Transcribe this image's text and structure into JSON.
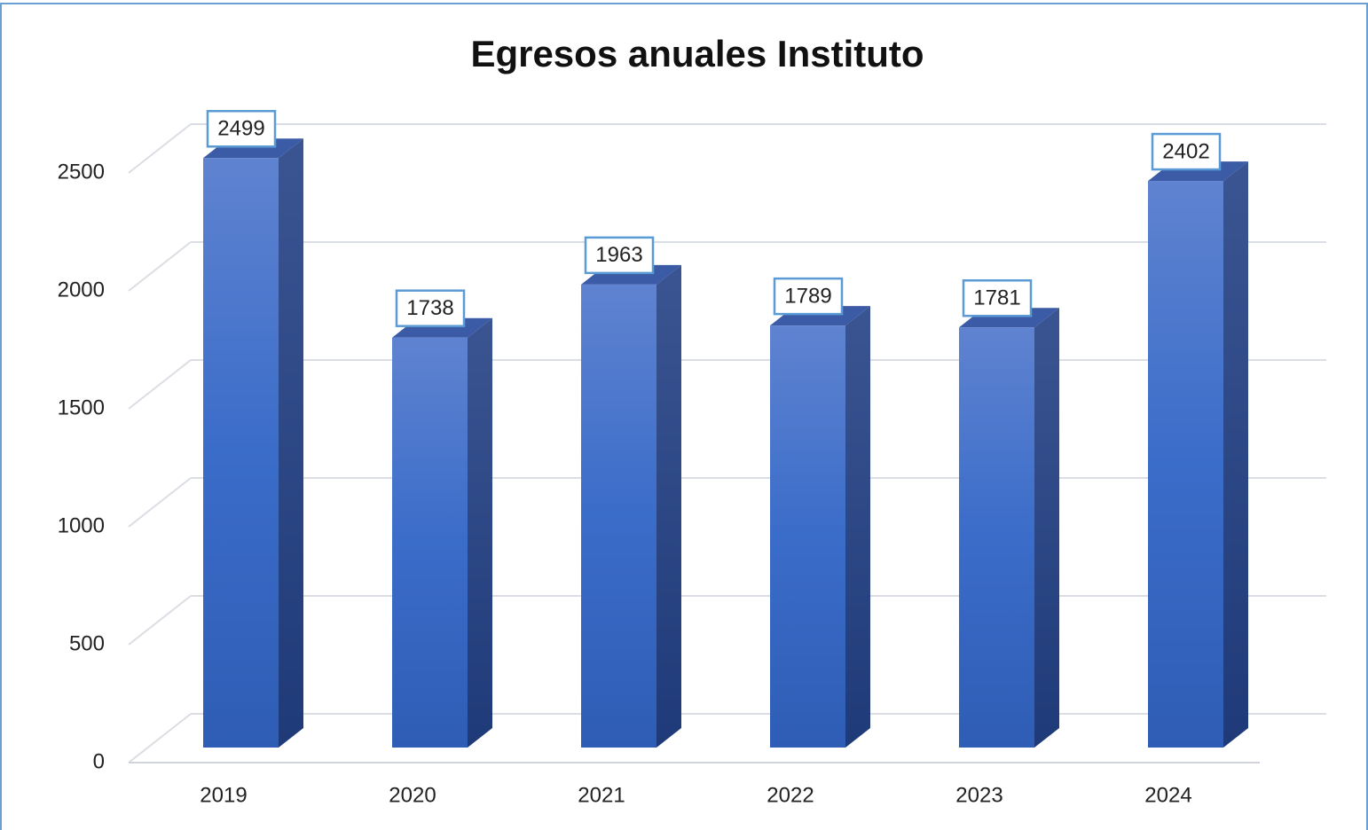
{
  "chart_data": {
    "type": "bar3d",
    "title": "Egresos anuales Instituto",
    "categories": [
      "2019",
      "2020",
      "2021",
      "2022",
      "2023",
      "2024"
    ],
    "values": [
      2499,
      1738,
      1963,
      1789,
      1781,
      2402
    ],
    "color": "#3d6fcc",
    "ylim": [
      0,
      2500
    ],
    "yticks": [
      0,
      500,
      1000,
      1500,
      2000,
      2500
    ],
    "grid": true
  }
}
